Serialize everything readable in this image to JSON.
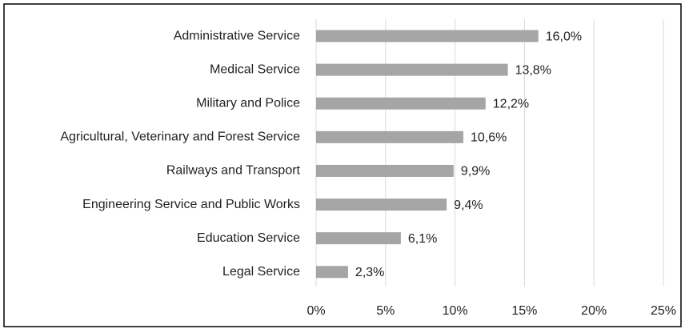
{
  "chart_data": {
    "type": "bar",
    "orientation": "horizontal",
    "categories": [
      "Administrative Service",
      "Medical Service",
      "Military and Police",
      "Agricultural, Veterinary and Forest Service",
      "Railways and Transport",
      "Engineering Service and Public Works",
      "Education Service",
      "Legal Service"
    ],
    "values": [
      16.0,
      13.8,
      12.2,
      10.6,
      9.9,
      9.4,
      6.1,
      2.3
    ],
    "value_labels": [
      "16,0%",
      "13,8%",
      "12,2%",
      "10,6%",
      "9,9%",
      "9,4%",
      "6,1%",
      "2,3%"
    ],
    "color": "#a5a5a5",
    "xlim": [
      0,
      25
    ],
    "xticks": [
      {
        "value": 0,
        "label": "0%"
      },
      {
        "value": 5,
        "label": "5%"
      },
      {
        "value": 10,
        "label": "10%"
      },
      {
        "value": 15,
        "label": "15%"
      },
      {
        "value": 20,
        "label": "20%"
      },
      {
        "value": 25,
        "label": "25%"
      }
    ],
    "grid": true
  }
}
